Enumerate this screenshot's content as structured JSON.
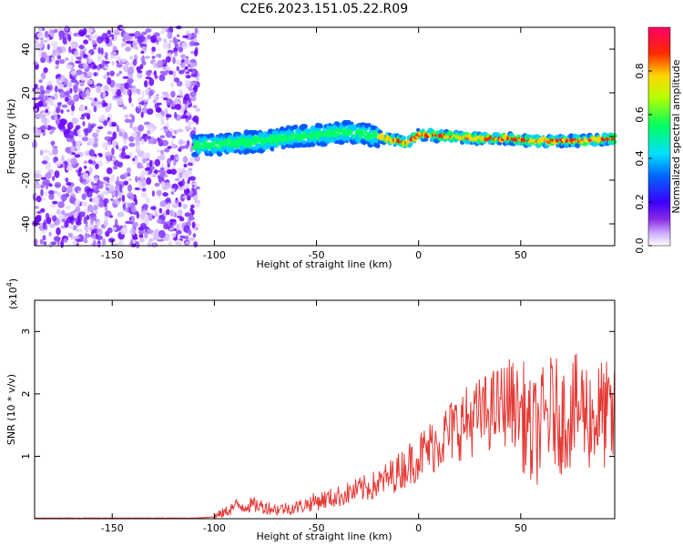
{
  "title": "C2E6.2023.151.05.22.R09",
  "colors": {
    "snr_line": "#e53935",
    "dot_purple": "#6a00ff",
    "ridge_colors": [
      "#3a00ff",
      "#0055ff",
      "#00ccff",
      "#00ff66",
      "#ffd800",
      "#ff1a00"
    ]
  },
  "chart_data": [
    {
      "type": "heatmap",
      "title": "C2E6.2023.151.05.22.R09",
      "xlabel": "Height of straight line (km)",
      "ylabel": "Frequency (Hz)",
      "xlim": [
        -188,
        96
      ],
      "ylim": [
        -50,
        50
      ],
      "xticks": [
        -150,
        -100,
        -50,
        0,
        50
      ],
      "yticks": [
        -40,
        -20,
        0,
        20,
        40
      ],
      "ridge": {
        "description_free": true,
        "x": [
          -105,
          -90,
          -75,
          -60,
          -45,
          -35,
          -25,
          -15,
          -5,
          0,
          15,
          30,
          45,
          55,
          70,
          80,
          95
        ],
        "y": [
          -4,
          -3,
          -2,
          0,
          1,
          2,
          1,
          -1,
          -3,
          1,
          0,
          -1,
          -1,
          -2,
          -2,
          -2,
          -1
        ]
      },
      "noise_region_x": [
        -188,
        -108
      ],
      "colorbar": {
        "label": "Normalized spectral amplitude",
        "range": [
          0.0,
          1.0
        ],
        "ticks": [
          0.0,
          0.2,
          0.4,
          0.6,
          0.8
        ]
      }
    },
    {
      "type": "line",
      "xlabel": "Height of straight line (km)",
      "ylabel": "SNR (10 * v/v)",
      "yscale_label": "(x10",
      "yscale_exp": "4",
      "xlim": [
        -188,
        96
      ],
      "ylim": [
        0,
        3.5
      ],
      "xticks": [
        -150,
        -100,
        -50,
        0,
        50
      ],
      "yticks": [
        1,
        2,
        3
      ],
      "series": [
        {
          "x": [
            -188,
            -110,
            -100,
            -95,
            -90,
            -80,
            -70,
            -60,
            -50,
            -40,
            -30,
            -20,
            -10,
            0,
            10,
            20,
            30,
            40,
            45,
            50,
            52,
            55,
            60,
            65,
            70,
            75,
            80,
            85,
            90,
            96
          ],
          "values": [
            0.01,
            0.01,
            0.03,
            0.1,
            0.2,
            0.22,
            0.15,
            0.18,
            0.28,
            0.35,
            0.45,
            0.55,
            0.75,
            1.0,
            1.25,
            1.5,
            1.65,
            1.8,
            1.9,
            1.7,
            1.6,
            1.3,
            1.5,
            1.75,
            1.6,
            1.7,
            1.8,
            1.6,
            1.7,
            1.5
          ]
        }
      ]
    }
  ]
}
